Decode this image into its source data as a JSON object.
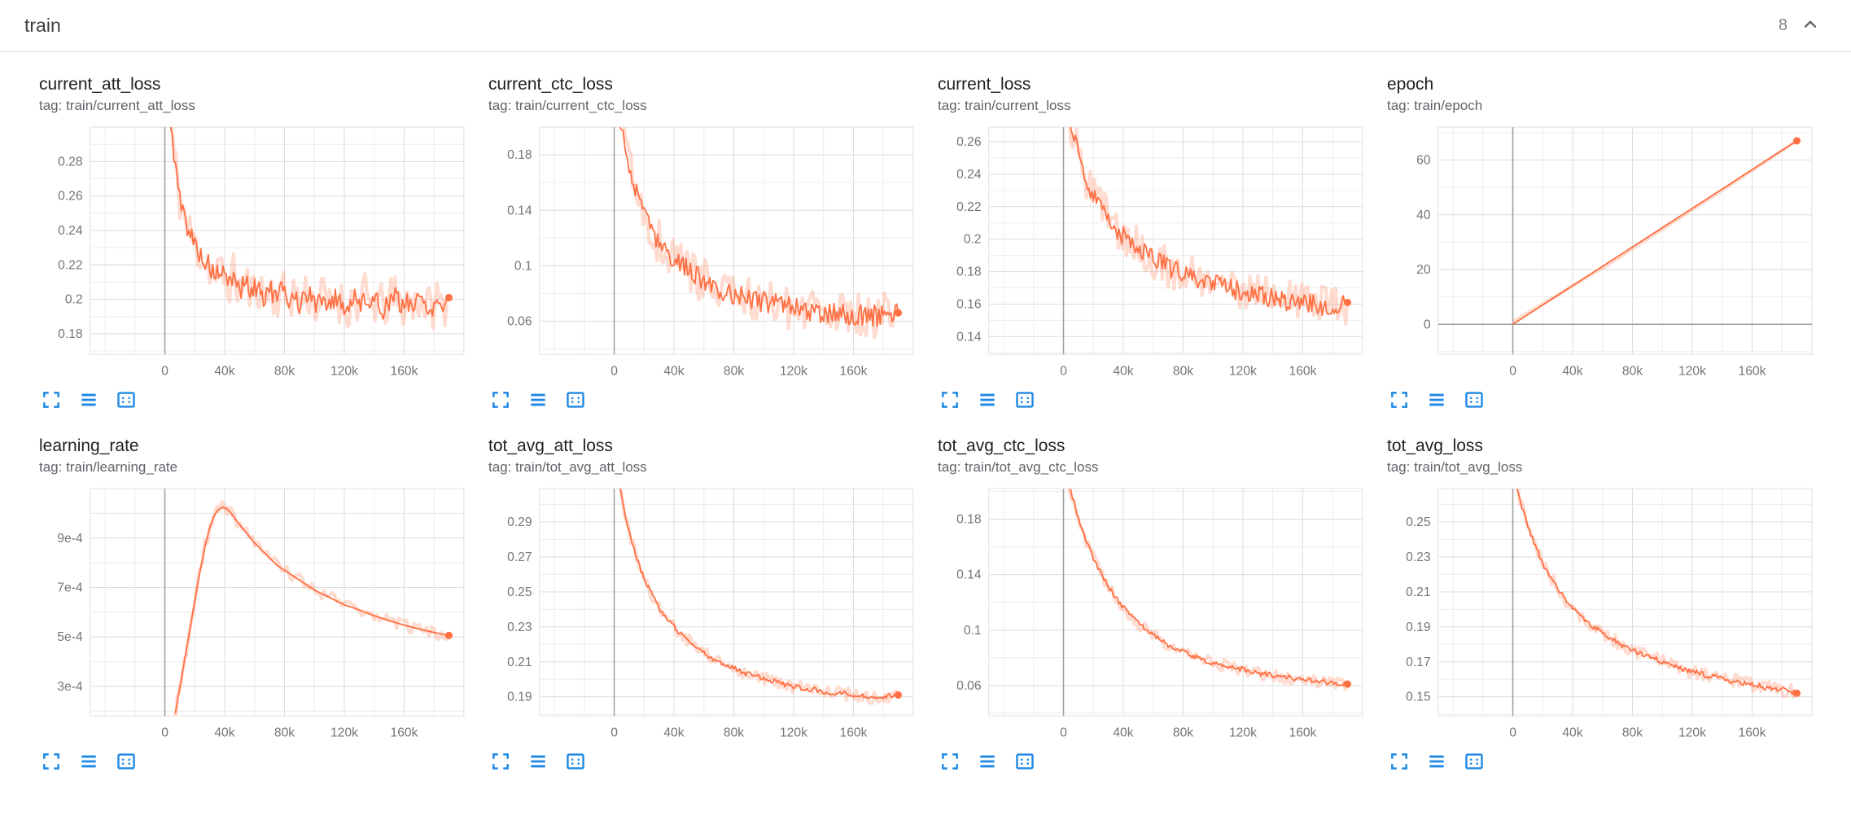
{
  "header": {
    "title": "train",
    "count": "8",
    "collapse_icon": "chevron-up-icon"
  },
  "colors": {
    "series": "#ff7043",
    "toolbar_icon": "#1e88e5",
    "grid_major": "#dcdcdc",
    "grid_minor": "#ececec",
    "zero_line": "#9e9e9e"
  },
  "card_toolbar": {
    "icons": [
      "expand-icon",
      "horizontal-lines-icon",
      "fit-domain-icon"
    ]
  },
  "chart_data": [
    {
      "type": "line",
      "title": "current_att_loss",
      "tag": "tag: train/current_att_loss",
      "color": "#ff7043",
      "xlim": [
        -50000,
        200000
      ],
      "xticks": [
        0,
        40000,
        80000,
        120000,
        160000
      ],
      "xtick_labels": [
        "0",
        "40k",
        "80k",
        "120k",
        "160k"
      ],
      "x_grid_step": 20000,
      "ylim": [
        0.168,
        0.3
      ],
      "yticks": [
        0.18,
        0.2,
        0.22,
        0.24,
        0.26,
        0.28
      ],
      "ytick_labels": [
        "0.18",
        "0.2",
        "0.22",
        "0.24",
        "0.26",
        "0.28"
      ],
      "y_grid_step": 0.01,
      "end_marker": true,
      "series": {
        "x_start": 2000,
        "dx": 4000,
        "noise": 0.006,
        "band": 0.013,
        "values": [
          0.32,
          0.285,
          0.258,
          0.245,
          0.236,
          0.229,
          0.223,
          0.219,
          0.213,
          0.217,
          0.208,
          0.214,
          0.205,
          0.211,
          0.203,
          0.209,
          0.201,
          0.207,
          0.2,
          0.206,
          0.198,
          0.205,
          0.197,
          0.204,
          0.201,
          0.196,
          0.203,
          0.195,
          0.202,
          0.198,
          0.194,
          0.201,
          0.197,
          0.203,
          0.195,
          0.2,
          0.194,
          0.199,
          0.202,
          0.195,
          0.2,
          0.196,
          0.201,
          0.198,
          0.194,
          0.2,
          0.196,
          0.201
        ]
      }
    },
    {
      "type": "line",
      "title": "current_ctc_loss",
      "tag": "tag: train/current_ctc_loss",
      "color": "#ff7043",
      "xlim": [
        -50000,
        200000
      ],
      "xticks": [
        0,
        40000,
        80000,
        120000,
        160000
      ],
      "xtick_labels": [
        "0",
        "40k",
        "80k",
        "120k",
        "160k"
      ],
      "x_grid_step": 20000,
      "ylim": [
        0.036,
        0.2
      ],
      "yticks": [
        0.06,
        0.1,
        0.14,
        0.18
      ],
      "ytick_labels": [
        "0.06",
        "0.1",
        "0.14",
        "0.18"
      ],
      "y_grid_step": 0.02,
      "end_marker": true,
      "series": {
        "x_start": 2000,
        "dx": 4000,
        "noise": 0.008,
        "band": 0.016,
        "values": [
          0.21,
          0.192,
          0.17,
          0.154,
          0.142,
          0.132,
          0.124,
          0.117,
          0.112,
          0.107,
          0.103,
          0.099,
          0.096,
          0.093,
          0.09,
          0.088,
          0.086,
          0.084,
          0.082,
          0.08,
          0.079,
          0.078,
          0.076,
          0.075,
          0.074,
          0.073,
          0.072,
          0.072,
          0.071,
          0.07,
          0.07,
          0.069,
          0.068,
          0.068,
          0.067,
          0.067,
          0.066,
          0.066,
          0.065,
          0.065,
          0.065,
          0.064,
          0.064,
          0.064,
          0.063,
          0.065,
          0.064,
          0.066
        ]
      }
    },
    {
      "type": "line",
      "title": "current_loss",
      "tag": "tag: train/current_loss",
      "color": "#ff7043",
      "xlim": [
        -50000,
        200000
      ],
      "xticks": [
        0,
        40000,
        80000,
        120000,
        160000
      ],
      "xtick_labels": [
        "0",
        "40k",
        "80k",
        "120k",
        "160k"
      ],
      "x_grid_step": 20000,
      "ylim": [
        0.129,
        0.269
      ],
      "yticks": [
        0.14,
        0.16,
        0.18,
        0.2,
        0.22,
        0.24,
        0.26
      ],
      "ytick_labels": [
        "0.14",
        "0.16",
        "0.18",
        "0.2",
        "0.22",
        "0.24",
        "0.26"
      ],
      "y_grid_step": 0.01,
      "end_marker": true,
      "series": {
        "x_start": 2000,
        "dx": 4000,
        "noise": 0.006,
        "band": 0.013,
        "values": [
          0.285,
          0.266,
          0.251,
          0.24,
          0.231,
          0.224,
          0.218,
          0.213,
          0.208,
          0.204,
          0.2,
          0.197,
          0.194,
          0.191,
          0.189,
          0.187,
          0.185,
          0.183,
          0.181,
          0.18,
          0.178,
          0.177,
          0.175,
          0.174,
          0.173,
          0.172,
          0.171,
          0.17,
          0.169,
          0.168,
          0.167,
          0.166,
          0.165,
          0.165,
          0.164,
          0.163,
          0.162,
          0.162,
          0.161,
          0.161,
          0.16,
          0.16,
          0.159,
          0.159,
          0.158,
          0.158,
          0.159,
          0.161
        ]
      }
    },
    {
      "type": "line",
      "title": "epoch",
      "tag": "tag: train/epoch",
      "color": "#ff7043",
      "xlim": [
        -50000,
        200000
      ],
      "xticks": [
        0,
        40000,
        80000,
        120000,
        160000
      ],
      "xtick_labels": [
        "0",
        "40k",
        "80k",
        "120k",
        "160k"
      ],
      "x_grid_step": 20000,
      "ylim": [
        -11,
        72
      ],
      "yticks": [
        0,
        20,
        40,
        60
      ],
      "ytick_labels": [
        "0",
        "20",
        "40",
        "60"
      ],
      "y_grid_step": 10,
      "end_marker": true,
      "series": {
        "noise": 0,
        "band": 1.0,
        "points": [
          [
            0,
            0
          ],
          [
            190000,
            67
          ]
        ]
      }
    },
    {
      "type": "line",
      "title": "learning_rate",
      "tag": "tag: train/learning_rate",
      "color": "#ff7043",
      "xlim": [
        -50000,
        200000
      ],
      "xticks": [
        0,
        40000,
        80000,
        120000,
        160000
      ],
      "xtick_labels": [
        "0",
        "40k",
        "80k",
        "120k",
        "160k"
      ],
      "x_grid_step": 20000,
      "ylim": [
        0.00018,
        0.0011
      ],
      "yticks": [
        0.0003,
        0.0005,
        0.0007,
        0.0009
      ],
      "ytick_labels": [
        "3e-4",
        "5e-4",
        "7e-4",
        "9e-4"
      ],
      "y_grid_step": 0.0001,
      "end_marker": true,
      "series": {
        "noise": 0,
        "band": 2.5e-05,
        "points": [
          [
            7000,
            0.00019
          ],
          [
            9000,
            0.00026
          ],
          [
            11000,
            0.00033
          ],
          [
            13000,
            0.0004
          ],
          [
            15000,
            0.00047
          ],
          [
            17000,
            0.00054
          ],
          [
            19000,
            0.00061
          ],
          [
            21000,
            0.00068
          ],
          [
            23000,
            0.00075
          ],
          [
            25000,
            0.00081
          ],
          [
            27000,
            0.00087
          ],
          [
            29000,
            0.00092
          ],
          [
            31000,
            0.00096
          ],
          [
            33000,
            0.00099
          ],
          [
            35000,
            0.00101
          ],
          [
            37000,
            0.00102
          ],
          [
            39000,
            0.001025
          ],
          [
            41000,
            0.00102
          ],
          [
            43000,
            0.00101
          ],
          [
            45000,
            0.000995
          ],
          [
            48000,
            0.00097
          ],
          [
            52000,
            0.00094
          ],
          [
            56000,
            0.00091
          ],
          [
            60000,
            0.00088
          ],
          [
            65000,
            0.00085
          ],
          [
            70000,
            0.00082
          ],
          [
            75000,
            0.00079
          ],
          [
            80000,
            0.00077
          ],
          [
            85000,
            0.00075
          ],
          [
            90000,
            0.00073
          ],
          [
            95000,
            0.00071
          ],
          [
            100000,
            0.00069
          ],
          [
            105000,
            0.000675
          ],
          [
            110000,
            0.00066
          ],
          [
            115000,
            0.000645
          ],
          [
            120000,
            0.00063
          ],
          [
            125000,
            0.00062
          ],
          [
            130000,
            0.00061
          ],
          [
            135000,
            0.000597
          ],
          [
            140000,
            0.000586
          ],
          [
            145000,
            0.000576
          ],
          [
            150000,
            0.000566
          ],
          [
            155000,
            0.000557
          ],
          [
            160000,
            0.000548
          ],
          [
            165000,
            0.00054
          ],
          [
            170000,
            0.000532
          ],
          [
            175000,
            0.000525
          ],
          [
            180000,
            0.000518
          ],
          [
            185000,
            0.000512
          ],
          [
            190000,
            0.000506
          ]
        ]
      }
    },
    {
      "type": "line",
      "title": "tot_avg_att_loss",
      "tag": "tag: train/tot_avg_att_loss",
      "color": "#ff7043",
      "xlim": [
        -50000,
        200000
      ],
      "xticks": [
        0,
        40000,
        80000,
        120000,
        160000
      ],
      "xtick_labels": [
        "0",
        "40k",
        "80k",
        "120k",
        "160k"
      ],
      "x_grid_step": 20000,
      "ylim": [
        0.179,
        0.309
      ],
      "yticks": [
        0.19,
        0.21,
        0.23,
        0.25,
        0.27,
        0.29
      ],
      "ytick_labels": [
        "0.19",
        "0.21",
        "0.23",
        "0.25",
        "0.27",
        "0.29"
      ],
      "y_grid_step": 0.01,
      "end_marker": true,
      "series": {
        "x_start": 2000,
        "dx": 4000,
        "noise": 0.0015,
        "band": 0.004,
        "values": [
          0.318,
          0.299,
          0.284,
          0.272,
          0.262,
          0.254,
          0.247,
          0.241,
          0.236,
          0.232,
          0.228,
          0.225,
          0.222,
          0.219,
          0.217,
          0.214,
          0.212,
          0.21,
          0.209,
          0.207,
          0.206,
          0.204,
          0.203,
          0.202,
          0.201,
          0.2,
          0.199,
          0.198,
          0.197,
          0.196,
          0.196,
          0.195,
          0.194,
          0.194,
          0.193,
          0.193,
          0.192,
          0.192,
          0.192,
          0.191,
          0.191,
          0.191,
          0.19,
          0.19,
          0.19,
          0.19,
          0.191,
          0.191
        ]
      }
    },
    {
      "type": "line",
      "title": "tot_avg_ctc_loss",
      "tag": "tag: train/tot_avg_ctc_loss",
      "color": "#ff7043",
      "xlim": [
        -50000,
        200000
      ],
      "xticks": [
        0,
        40000,
        80000,
        120000,
        160000
      ],
      "xtick_labels": [
        "0",
        "40k",
        "80k",
        "120k",
        "160k"
      ],
      "x_grid_step": 20000,
      "ylim": [
        0.038,
        0.202
      ],
      "yticks": [
        0.06,
        0.1,
        0.14,
        0.18
      ],
      "ytick_labels": [
        "0.06",
        "0.1",
        "0.14",
        "0.18"
      ],
      "y_grid_step": 0.02,
      "end_marker": true,
      "series": {
        "x_start": 2000,
        "dx": 4000,
        "noise": 0.0018,
        "band": 0.0045,
        "values": [
          0.21,
          0.196,
          0.181,
          0.168,
          0.157,
          0.147,
          0.139,
          0.131,
          0.125,
          0.119,
          0.114,
          0.109,
          0.105,
          0.101,
          0.098,
          0.095,
          0.092,
          0.089,
          0.087,
          0.085,
          0.083,
          0.081,
          0.08,
          0.078,
          0.077,
          0.076,
          0.075,
          0.074,
          0.073,
          0.072,
          0.071,
          0.07,
          0.069,
          0.068,
          0.068,
          0.067,
          0.066,
          0.066,
          0.065,
          0.065,
          0.064,
          0.064,
          0.063,
          0.063,
          0.062,
          0.062,
          0.061,
          0.061
        ]
      }
    },
    {
      "type": "line",
      "title": "tot_avg_loss",
      "tag": "tag: train/tot_avg_loss",
      "color": "#ff7043",
      "xlim": [
        -50000,
        200000
      ],
      "xticks": [
        0,
        40000,
        80000,
        120000,
        160000
      ],
      "xtick_labels": [
        "0",
        "40k",
        "80k",
        "120k",
        "160k"
      ],
      "x_grid_step": 20000,
      "ylim": [
        0.139,
        0.269
      ],
      "yticks": [
        0.15,
        0.17,
        0.19,
        0.21,
        0.23,
        0.25
      ],
      "ytick_labels": [
        "0.15",
        "0.17",
        "0.19",
        "0.21",
        "0.23",
        "0.25"
      ],
      "y_grid_step": 0.01,
      "end_marker": true,
      "series": {
        "x_start": 2000,
        "dx": 4000,
        "noise": 0.0015,
        "band": 0.004,
        "values": [
          0.272,
          0.259,
          0.248,
          0.238,
          0.23,
          0.223,
          0.217,
          0.212,
          0.207,
          0.203,
          0.199,
          0.196,
          0.193,
          0.19,
          0.188,
          0.185,
          0.183,
          0.181,
          0.179,
          0.178,
          0.176,
          0.175,
          0.173,
          0.172,
          0.171,
          0.169,
          0.168,
          0.167,
          0.166,
          0.165,
          0.164,
          0.163,
          0.162,
          0.162,
          0.161,
          0.16,
          0.159,
          0.159,
          0.158,
          0.157,
          0.157,
          0.156,
          0.155,
          0.155,
          0.154,
          0.154,
          0.153,
          0.152
        ]
      }
    }
  ]
}
